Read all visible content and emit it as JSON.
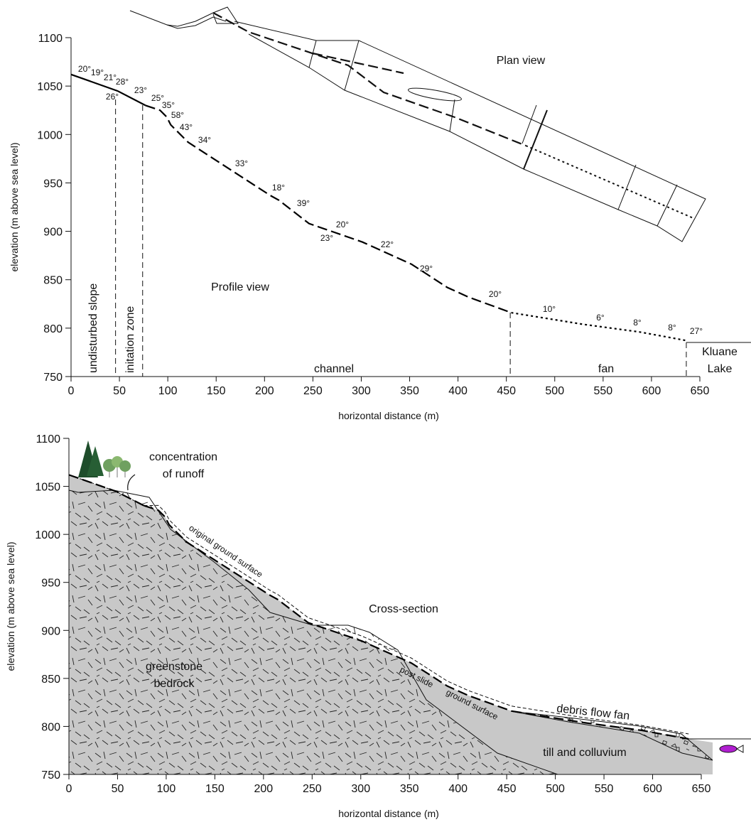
{
  "chart_data": [
    {
      "type": "line",
      "title": "Plan view",
      "subtitle": "Profile view",
      "x_label": "horizontal distance (m)",
      "y_label": "elevation (m above sea level)",
      "xlim": [
        0,
        650
      ],
      "ylim": [
        750,
        1100
      ],
      "xticks": [
        0,
        50,
        100,
        150,
        200,
        250,
        300,
        350,
        400,
        450,
        500,
        550,
        600,
        650
      ],
      "yticks": [
        750,
        800,
        850,
        900,
        950,
        1000,
        1050,
        1100
      ],
      "series": [
        {
          "style": "solid",
          "color": "#000000",
          "x": [
            0,
            48,
            77
          ],
          "values": [
            1062,
            1045,
            1030
          ]
        },
        {
          "style": "dashed",
          "color": "#000000",
          "x": [
            77,
            92,
            99,
            103,
            121,
            206,
            215,
            246,
            301,
            352,
            389,
            411,
            455
          ],
          "values": [
            1030,
            1025,
            1018,
            1010,
            992,
            937,
            932,
            908,
            889,
            866,
            842,
            832,
            816
          ]
        },
        {
          "style": "dotted",
          "color": "#000000",
          "x": [
            455,
            529,
            588,
            637
          ],
          "values": [
            816,
            804,
            796,
            787
          ]
        }
      ],
      "boundaries": [
        46,
        74,
        454,
        636
      ],
      "zones": [
        "undisturbed slope",
        "initation zone",
        "channel",
        "fan"
      ],
      "lake": [
        "Kluane",
        "Lake"
      ],
      "slope_angles": [
        "20°",
        "19°",
        "21°",
        "28°",
        "26°",
        "23°",
        "25°",
        "35°",
        "58°",
        "43°",
        "34°",
        "33°",
        "18°",
        "39°",
        "20°",
        "23°",
        "22°",
        "29°",
        "20°",
        "10°",
        "6°",
        "8°",
        "8°",
        "27°"
      ]
    },
    {
      "type": "area",
      "title": "Cross-section",
      "x_label": "horizontal distance (m)",
      "y_label": "elevation (m above sea level)",
      "xlim": [
        0,
        650
      ],
      "ylim": [
        750,
        1100
      ],
      "xticks": [
        0,
        50,
        100,
        150,
        200,
        250,
        300,
        350,
        400,
        450,
        500,
        550,
        600,
        650
      ],
      "yticks": [
        750,
        800,
        850,
        900,
        950,
        1000,
        1050,
        1100
      ],
      "runoff": [
        "concentration",
        "of runoff"
      ],
      "original": "original ground surface",
      "bedrock": [
        "greenstone",
        "bedrock"
      ],
      "post_slide": [
        "post slide",
        "ground surface"
      ],
      "fan": "debris flow fan",
      "till": "till and colluvium"
    }
  ]
}
